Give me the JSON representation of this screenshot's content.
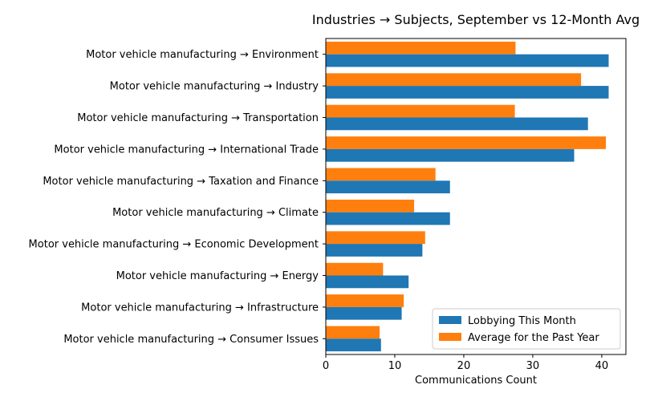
{
  "chart_data": {
    "type": "bar",
    "orientation": "horizontal",
    "title": "Industries → Subjects, September vs 12-Month Avg",
    "xlabel": "Communications Count",
    "ylabel": "",
    "xlim": [
      0,
      43.5
    ],
    "xticks": [
      0,
      10,
      20,
      30,
      40
    ],
    "grid": false,
    "legend_position": "lower right",
    "categories": [
      "Motor vehicle manufacturing → Environment",
      "Motor vehicle manufacturing → Industry",
      "Motor vehicle manufacturing → Transportation",
      "Motor vehicle manufacturing → International Trade",
      "Motor vehicle manufacturing → Taxation and Finance",
      "Motor vehicle manufacturing → Climate",
      "Motor vehicle manufacturing → Economic Development",
      "Motor vehicle manufacturing → Energy",
      "Motor vehicle manufacturing → Infrastructure",
      "Motor vehicle manufacturing → Consumer Issues"
    ],
    "series": [
      {
        "name": "Lobbying This Month",
        "color": "#1f77b4",
        "values": [
          41,
          41,
          38,
          36,
          18,
          18,
          14,
          12,
          11,
          8
        ]
      },
      {
        "name": "Average for the Past Year",
        "color": "#ff7f0e",
        "values": [
          27.5,
          37,
          27.4,
          40.6,
          15.9,
          12.8,
          14.4,
          8.3,
          11.3,
          7.8
        ]
      }
    ]
  }
}
